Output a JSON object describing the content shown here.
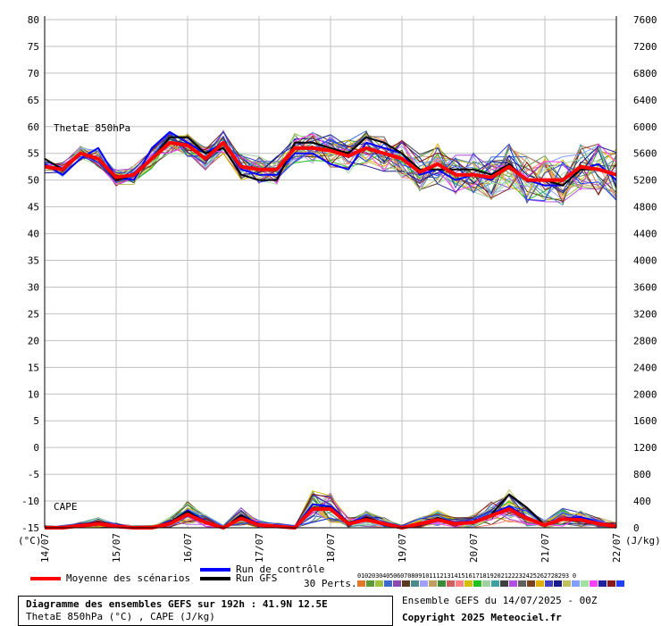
{
  "chart_data": {
    "type": "line",
    "left_axis": {
      "min": -15,
      "max": 80,
      "ticks": [
        80,
        75,
        70,
        65,
        60,
        55,
        50,
        45,
        40,
        35,
        30,
        25,
        20,
        15,
        10,
        5,
        0,
        -5,
        -10,
        -15
      ],
      "unit_label": "(°C)"
    },
    "right_axis": {
      "min": 0,
      "max": 7600,
      "ticks": [
        7600,
        7200,
        6800,
        6400,
        6000,
        5600,
        5200,
        4800,
        4400,
        4000,
        3600,
        3200,
        2800,
        2400,
        2000,
        1600,
        1200,
        800,
        400,
        0
      ],
      "unit_label": "(J/kg)"
    },
    "x_dates": [
      "14/07",
      "15/07",
      "16/07",
      "17/07",
      "18/07",
      "19/07",
      "20/07",
      "21/07",
      "22/07"
    ],
    "grid": true,
    "panel_labels": {
      "thetae": "ThetaE 850hPa",
      "cape": "CAPE"
    },
    "thetae_series": {
      "mean": [
        52.5,
        52,
        55,
        54,
        50.5,
        51,
        54,
        57,
        56.5,
        54,
        57,
        52.5,
        52,
        52,
        56,
        56,
        55.5,
        54.5,
        56,
        55,
        54,
        51.5,
        53,
        51,
        51,
        50.5,
        52.5,
        50,
        50,
        50,
        52.5,
        52,
        51
      ],
      "control": [
        53,
        51,
        54,
        56,
        50.5,
        50,
        56,
        59,
        57,
        55,
        57,
        52,
        51,
        51,
        55,
        55,
        53,
        52,
        57,
        56,
        55,
        51,
        52,
        50,
        51,
        50,
        53,
        50,
        49,
        49,
        52,
        53,
        50
      ],
      "gfs": [
        54,
        52,
        55,
        54,
        50,
        51,
        54,
        58,
        58,
        55,
        56,
        51,
        50,
        50,
        57,
        57,
        56,
        55,
        58,
        57,
        55,
        52,
        52,
        52,
        52,
        51,
        53,
        50,
        50,
        49,
        52,
        52,
        51
      ]
    },
    "cape_series_jkg": {
      "mean": [
        0,
        0,
        30,
        60,
        20,
        0,
        0,
        60,
        200,
        80,
        0,
        140,
        40,
        20,
        0,
        280,
        280,
        60,
        120,
        60,
        0,
        60,
        120,
        60,
        80,
        180,
        280,
        140,
        40,
        130,
        120,
        60,
        20
      ],
      "control": [
        0,
        0,
        40,
        80,
        20,
        0,
        0,
        80,
        250,
        100,
        0,
        180,
        60,
        20,
        0,
        350,
        320,
        80,
        150,
        60,
        0,
        60,
        140,
        80,
        100,
        200,
        320,
        160,
        40,
        140,
        160,
        80,
        0
      ],
      "gfs": [
        0,
        0,
        40,
        80,
        10,
        0,
        0,
        80,
        240,
        80,
        0,
        180,
        40,
        10,
        0,
        300,
        300,
        40,
        150,
        60,
        0,
        40,
        150,
        60,
        80,
        200,
        500,
        300,
        40,
        120,
        100,
        60,
        20
      ]
    },
    "ensemble_colors": [
      "#e07a2a",
      "#5a9a3a",
      "#a0c040",
      "#3a6ad0",
      "#8a4ab0",
      "#5a3a20",
      "#4a8a8a",
      "#a0a0ff",
      "#c0a060",
      "#3a8a3a",
      "#d06060",
      "#ff8080",
      "#d0c000",
      "#20c020",
      "#a0d0a0",
      "#40a0a0",
      "#404040",
      "#b050e0",
      "#606060",
      "#7a4020",
      "#e0b000",
      "#4040c0",
      "#1a1a8a",
      "#c0c060",
      "#80a0ff",
      "#a0e0a0",
      "#ff40ff",
      "#2020a0",
      "#8a1a1a",
      "#2040ff"
    ]
  },
  "legend": {
    "mean": {
      "label": "Moyenne des scénarios",
      "color": "#ff0000"
    },
    "control": {
      "label": "Run de contrôle",
      "color": "#0000ff"
    },
    "gfs": {
      "label": "Run GFS",
      "color": "#000000"
    },
    "perts_label": "30 Perts.",
    "pert_numbers": "01020304050607080910111213141516171819202122232425262728293 0"
  },
  "title_box": {
    "line1": "Diagramme des ensembles GEFS sur 192h : 41.9N 12.5E",
    "line2": "ThetaE 850hPa (°C) , CAPE (J/kg)"
  },
  "credits": {
    "run": "Ensemble GEFS du 14/07/2025 - 00Z",
    "copyright": "Copyright 2025 Meteociel.fr"
  }
}
